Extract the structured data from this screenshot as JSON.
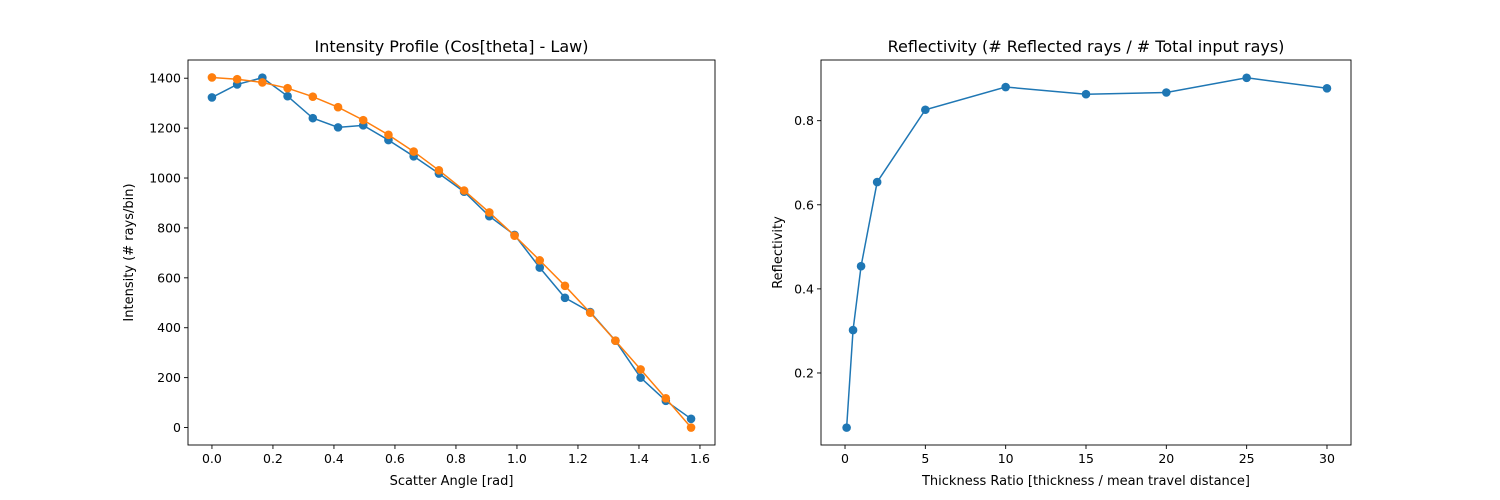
{
  "chart_data": [
    {
      "type": "line",
      "title": "Intensity Profile (Cos[theta] - Law)",
      "xlabel": "Scatter Angle [rad]",
      "ylabel": "Intensity (# rays/bin)",
      "xlim": [
        -0.0785,
        1.6493
      ],
      "ylim": [
        -70.0,
        1473.0
      ],
      "xticks": [
        0.0,
        0.2,
        0.4,
        0.6,
        0.8,
        1.0,
        1.2,
        1.4,
        1.6
      ],
      "xtick_labels": [
        "0.0",
        "0.2",
        "0.4",
        "0.6",
        "0.8",
        "1.0",
        "1.2",
        "1.4",
        "1.6"
      ],
      "yticks": [
        0,
        200,
        400,
        600,
        800,
        1000,
        1200,
        1400
      ],
      "ytick_labels": [
        "0",
        "200",
        "400",
        "600",
        "800",
        "1000",
        "1200",
        "1400"
      ],
      "grid": false,
      "series": [
        {
          "color": "#1f77b4",
          "x": [
            0.0,
            0.0827,
            0.1653,
            0.248,
            0.3307,
            0.4134,
            0.496,
            0.5787,
            0.6614,
            0.7441,
            0.8267,
            0.9094,
            0.9921,
            1.0747,
            1.1574,
            1.2401,
            1.3228,
            1.4054,
            1.4881,
            1.5708
          ],
          "y": [
            1323,
            1375,
            1402,
            1328,
            1240,
            1203,
            1211,
            1152,
            1087,
            1018,
            945,
            847,
            772,
            641,
            520,
            463,
            348,
            200,
            107,
            35
          ]
        },
        {
          "color": "#ff7f0e",
          "x": [
            0.0,
            0.0827,
            0.1653,
            0.248,
            0.3307,
            0.4134,
            0.496,
            0.5787,
            0.6614,
            0.7441,
            0.8267,
            0.9094,
            0.9921,
            1.0747,
            1.1574,
            1.2401,
            1.3228,
            1.4054,
            1.4881,
            1.5708
          ],
          "y": [
            1403,
            1396,
            1383,
            1360,
            1326,
            1284,
            1232,
            1173,
            1106,
            1031,
            950,
            862,
            769,
            670,
            568,
            460,
            348,
            233,
            117,
            0
          ]
        }
      ]
    },
    {
      "type": "line",
      "title": "Reflectivity (# Reflected rays / # Total input rays)",
      "xlabel": "Thickness Ratio [thickness / mean travel distance]",
      "ylabel": "Reflectivity",
      "xlim": [
        -1.495,
        31.495
      ],
      "ylim": [
        0.0287,
        0.9443
      ],
      "xticks": [
        0,
        5,
        10,
        15,
        20,
        25,
        30
      ],
      "xtick_labels": [
        "0",
        "5",
        "10",
        "15",
        "20",
        "25",
        "30"
      ],
      "yticks": [
        0.2,
        0.4,
        0.6,
        0.8
      ],
      "ytick_labels": [
        "0.2",
        "0.4",
        "0.6",
        "0.8"
      ],
      "grid": false,
      "series": [
        {
          "color": "#1f77b4",
          "x": [
            0.1,
            0.5,
            1,
            2,
            5,
            10,
            15,
            20,
            25,
            30
          ],
          "y": [
            0.07,
            0.302,
            0.454,
            0.654,
            0.826,
            0.88,
            0.863,
            0.867,
            0.902,
            0.877
          ]
        }
      ]
    }
  ]
}
